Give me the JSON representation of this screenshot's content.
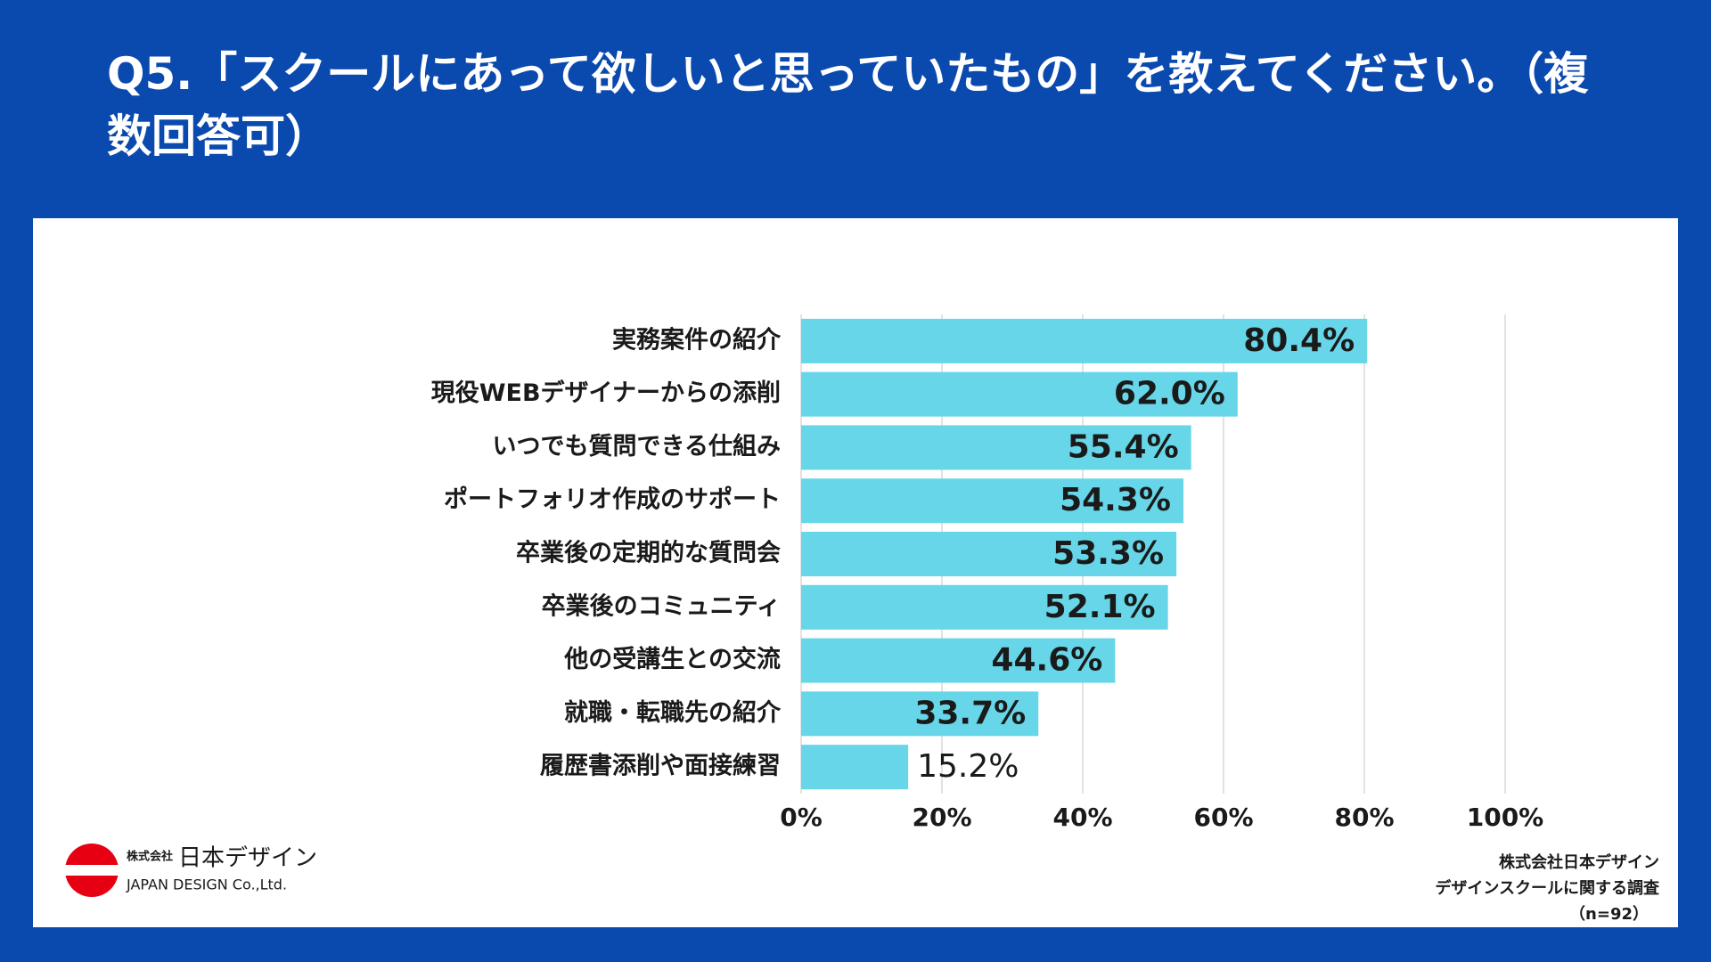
{
  "chart_data": {
    "type": "bar",
    "orientation": "horizontal",
    "title": "Q5.「スクールにあって欲しいと思っていたもの」を教えてください。（複数回答可）",
    "categories": [
      "実務案件の紹介",
      "現役WEBデザイナーからの添削",
      "いつでも質問できる仕組み",
      "ポートフォリオ作成のサポート",
      "卒業後の定期的な質問会",
      "卒業後のコミュニティ",
      "他の受講生との交流",
      "就職・転職先の紹介",
      "履歴書添削や面接練習"
    ],
    "values": [
      80.4,
      62.0,
      55.4,
      54.3,
      53.3,
      52.1,
      44.6,
      33.7,
      15.2
    ],
    "value_labels": [
      "80.4%",
      "62.0%",
      "55.4%",
      "54.3%",
      "53.3%",
      "52.1%",
      "44.6%",
      "33.7%",
      "15.2%"
    ],
    "color": "#66d6e8",
    "xlim": [
      0,
      100
    ],
    "xticks": [
      {
        "value": 0,
        "label": "0%"
      },
      {
        "value": 20,
        "label": "20%"
      },
      {
        "value": 40,
        "label": "40%"
      },
      {
        "value": 60,
        "label": "60%"
      },
      {
        "value": 80,
        "label": "80%"
      },
      {
        "value": 100,
        "label": "100%"
      }
    ],
    "grid": true
  },
  "logo": {
    "prefix": "株式会社",
    "name": "日本デザイン",
    "english": "JAPAN DESIGN Co.,Ltd."
  },
  "source": [
    "株式会社日本デザイン",
    "デザインスクールに関する調査",
    "（n=92）"
  ]
}
